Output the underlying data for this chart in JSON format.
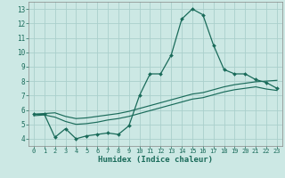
{
  "xlabel": "Humidex (Indice chaleur)",
  "background_color": "#cce8e4",
  "grid_color": "#aacfcc",
  "line_color": "#1a6b5a",
  "xlim": [
    -0.5,
    23.5
  ],
  "ylim": [
    3.5,
    13.5
  ],
  "xticks": [
    0,
    1,
    2,
    3,
    4,
    5,
    6,
    7,
    8,
    9,
    10,
    11,
    12,
    13,
    14,
    15,
    16,
    17,
    18,
    19,
    20,
    21,
    22,
    23
  ],
  "yticks": [
    4,
    5,
    6,
    7,
    8,
    9,
    10,
    11,
    12,
    13
  ],
  "line1_x": [
    0,
    1,
    2,
    3,
    4,
    5,
    6,
    7,
    8,
    9,
    10,
    11,
    12,
    13,
    14,
    15,
    16,
    17,
    18,
    19,
    20,
    21,
    22,
    23
  ],
  "line1_y": [
    5.7,
    5.7,
    4.1,
    4.7,
    4.0,
    4.2,
    4.3,
    4.4,
    4.3,
    4.9,
    7.0,
    8.5,
    8.5,
    9.8,
    12.3,
    13.0,
    12.6,
    10.5,
    8.8,
    8.5,
    8.5,
    8.1,
    7.9,
    7.5
  ],
  "line2_x": [
    0,
    1,
    2,
    3,
    4,
    5,
    6,
    7,
    8,
    9,
    10,
    11,
    12,
    13,
    14,
    15,
    16,
    17,
    18,
    19,
    20,
    21,
    22,
    23
  ],
  "line2_y": [
    5.7,
    5.75,
    5.8,
    5.55,
    5.4,
    5.45,
    5.55,
    5.65,
    5.75,
    5.9,
    6.1,
    6.3,
    6.5,
    6.7,
    6.9,
    7.1,
    7.2,
    7.4,
    7.6,
    7.75,
    7.85,
    7.95,
    8.0,
    8.05
  ],
  "line3_x": [
    0,
    1,
    2,
    3,
    4,
    5,
    6,
    7,
    8,
    9,
    10,
    11,
    12,
    13,
    14,
    15,
    16,
    17,
    18,
    19,
    20,
    21,
    22,
    23
  ],
  "line3_y": [
    5.6,
    5.65,
    5.5,
    5.2,
    5.0,
    5.05,
    5.15,
    5.3,
    5.4,
    5.55,
    5.75,
    5.95,
    6.15,
    6.35,
    6.55,
    6.75,
    6.85,
    7.05,
    7.25,
    7.4,
    7.5,
    7.6,
    7.45,
    7.35
  ]
}
